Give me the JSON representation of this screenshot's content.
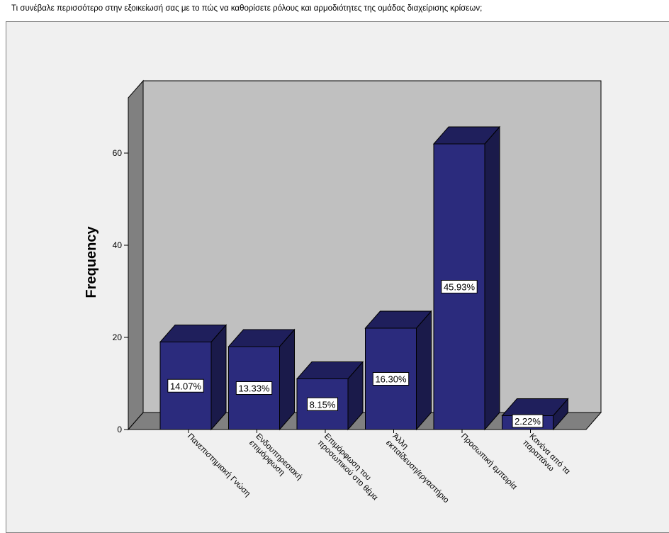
{
  "title": "Τι συνέβαλε περισσότερο στην εξοικείωσή σας με το πώς να καθορίσετε ρόλους και αρμοδιότητες της ομάδας διαχείρισης κρίσεων;",
  "chart_data": {
    "type": "bar",
    "title": "Τι συνέβαλε περισσότερο στην εξοικείωσή σας με το πώς να καθορίσετε ρόλους και αρμοδιότητες της ομάδας διαχείρισης κρίσεων;",
    "ylabel": "Frequency",
    "xlabel": "",
    "ylim": [
      0,
      72
    ],
    "yticks": [
      0,
      20,
      40,
      60
    ],
    "categories": [
      [
        "Πανεπιστημιακή Γνώση"
      ],
      [
        "Ενδουπηρεσιακή",
        "επιμόρφωση"
      ],
      [
        "Επιμόρφωση του",
        "προσωπικού στο θέμα"
      ],
      [
        "Άλλη",
        "εκπαίδευση/εργαστήριο"
      ],
      [
        "Προσωπική εμπειρία"
      ],
      [
        "Κανένα από τα",
        "παραπάνω"
      ]
    ],
    "values": [
      19,
      18,
      11,
      22,
      62,
      3
    ],
    "data_labels": [
      "14.07%",
      "13.33%",
      "8.15%",
      "16.30%",
      "45.93%",
      "2.22%"
    ],
    "bar_color": "#2b2b7d",
    "bar_top_color": "#1f1f5c",
    "bar_side_color": "#1a1a4a",
    "wall_color": "#c0c0c0",
    "floor_color": "#808080",
    "grid": false
  }
}
